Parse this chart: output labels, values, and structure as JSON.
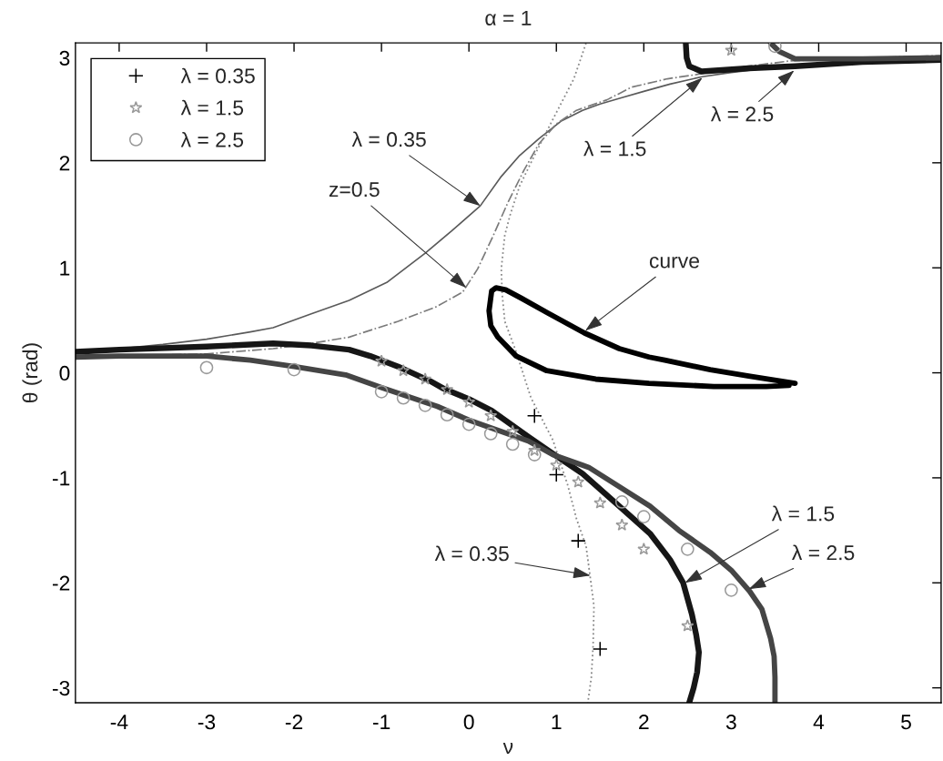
{
  "chart_data": {
    "type": "line",
    "title": "α = 1",
    "xlabel": "ν",
    "ylabel": "θ (rad)",
    "xlim": [
      -4.5,
      5.4
    ],
    "ylim": [
      -3.1416,
      3.1416
    ],
    "xticks": [
      -4,
      -3,
      -2,
      -1,
      0,
      1,
      2,
      3,
      4,
      5
    ],
    "yticks": [
      -3,
      -2,
      -1,
      0,
      1,
      2,
      3
    ],
    "legend": "top left",
    "series": [
      {
        "color": "#5a5a5a",
        "line_style": "solid",
        "x": [
          -4.5,
          -4,
          -3.5,
          -3,
          -2.5,
          -2.24,
          -1.81,
          -1.37,
          -0.94,
          -0.5,
          -0.2,
          0.13,
          0.37,
          0.58,
          0.8,
          1.06,
          1.3,
          1.5,
          1.75,
          2,
          2.3,
          2.67,
          3,
          3.5,
          4,
          4.5,
          5,
          5.4
        ],
        "values": [
          0.2,
          0.23,
          0.27,
          0.32,
          0.39,
          0.43,
          0.56,
          0.69,
          0.86,
          1.14,
          1.35,
          1.59,
          1.87,
          2.07,
          2.23,
          2.4,
          2.5,
          2.56,
          2.62,
          2.68,
          2.75,
          2.82,
          2.86,
          2.91,
          2.94,
          2.96,
          2.97,
          2.98
        ]
      },
      {
        "color": "#7a7a7a",
        "line_style": "dashdot",
        "x": [
          -4.5,
          -4,
          -3,
          -2.24,
          -1.8,
          -1.37,
          -0.81,
          -0.37,
          -0.07,
          0.1,
          0.28,
          0.45,
          0.63,
          0.8,
          1.0,
          1.23,
          1.58,
          1.86,
          2.27,
          2.6,
          3,
          3.67,
          4.5,
          5.4
        ],
        "values": [
          0.15,
          0.16,
          0.18,
          0.23,
          0.28,
          0.34,
          0.49,
          0.63,
          0.77,
          0.99,
          1.31,
          1.63,
          1.93,
          2.18,
          2.37,
          2.5,
          2.6,
          2.72,
          2.8,
          2.84,
          2.9,
          2.97,
          3.0,
          3.02
        ]
      },
      {
        "color": "#8a8a8a",
        "line_style": "dotted",
        "x": [
          1.34,
          1.2,
          0.97,
          0.75,
          0.58,
          0.47,
          0.41,
          0.37,
          0.38,
          0.41,
          0.54,
          0.71,
          0.96,
          1.13,
          1.23,
          1.34,
          1.43,
          1.42,
          1.4,
          1.36
        ],
        "values": [
          3.14,
          2.8,
          2.43,
          2.07,
          1.78,
          1.5,
          1.31,
          0.99,
          0.75,
          0.49,
          0.2,
          -0.24,
          -0.64,
          -1.07,
          -1.39,
          -1.65,
          -2.22,
          -2.6,
          -2.9,
          -3.14
        ]
      },
      {
        "color": "#000000",
        "line_style": "solid",
        "x": [
          3.73,
          3.2,
          2.76,
          2.24,
          2.06,
          1.72,
          1.32,
          0.9,
          0.6,
          0.42,
          0.31,
          0.26,
          0.23,
          0.25,
          0.33,
          0.54,
          0.89,
          1.45,
          2.06,
          2.8,
          3.4,
          3.66
        ],
        "values": [
          -0.1,
          -0.03,
          0.03,
          0.12,
          0.15,
          0.23,
          0.38,
          0.57,
          0.71,
          0.79,
          0.81,
          0.78,
          0.59,
          0.45,
          0.34,
          0.16,
          0.02,
          -0.06,
          -0.1,
          -0.13,
          -0.13,
          -0.12
        ]
      },
      {
        "color": "#161616",
        "line_style": "solid",
        "x": [
          -4.5,
          -4,
          -3,
          -2.24,
          -1.8,
          -1.37,
          -1.13,
          -0.81,
          -0.44,
          -0.29,
          0,
          0.26,
          0.68,
          0.96,
          1.3,
          1.72,
          2.07,
          2.3,
          2.45,
          2.55,
          2.6,
          2.63,
          2.61,
          2.57,
          2.52,
          2.5,
          2.48,
          2.49,
          2.52,
          2.66,
          3.2,
          3.73,
          4.5,
          5.4
        ],
        "values": [
          0.2,
          0.22,
          0.25,
          0.28,
          0.26,
          0.22,
          0.16,
          0.06,
          -0.08,
          -0.15,
          -0.25,
          -0.36,
          -0.61,
          -0.77,
          -0.96,
          -1.27,
          -1.53,
          -1.78,
          -2.0,
          -2.3,
          -2.5,
          -2.66,
          -2.85,
          -3.0,
          -3.14,
          null,
          3.14,
          3.0,
          2.92,
          2.87,
          2.9,
          2.92,
          2.96,
          2.98
        ]
      },
      {
        "color": "#454545",
        "line_style": "solid",
        "x": [
          -4.5,
          -4,
          -3,
          -2.5,
          -2,
          -1.41,
          -1,
          -0.36,
          0,
          0.68,
          0.96,
          1.37,
          2.07,
          2.4,
          2.76,
          3.0,
          3.21,
          3.35,
          3.45,
          3.49,
          3.5,
          3.5,
          3.47,
          3.45,
          3.55,
          3.73,
          4.5,
          5.4
        ],
        "values": [
          0.15,
          0.16,
          0.16,
          0.12,
          0.06,
          -0.02,
          -0.14,
          -0.32,
          -0.45,
          -0.65,
          -0.78,
          -0.9,
          -1.27,
          -1.5,
          -1.71,
          -1.88,
          -2.08,
          -2.25,
          -2.53,
          -2.7,
          -2.9,
          -3.14,
          null,
          3.14,
          3.06,
          2.99,
          2.99,
          3.0
        ]
      },
      {
        "type": "scatter",
        "name": "λ = 0.35",
        "color": "#000000",
        "marker": "cross",
        "x": [
          0.75,
          1,
          1.25,
          1.5
        ],
        "values": [
          -0.41,
          -0.97,
          -1.6,
          -2.63
        ]
      },
      {
        "type": "scatter",
        "name": "λ = 1.5",
        "color": "#999999",
        "marker": "star",
        "x": [
          -1,
          -0.75,
          -0.5,
          -0.25,
          0,
          0.25,
          0.5,
          0.75,
          1,
          1.25,
          1.5,
          1.75,
          2,
          2.5,
          3
        ],
        "values": [
          0.11,
          0.02,
          -0.06,
          -0.16,
          -0.28,
          -0.41,
          -0.56,
          -0.74,
          -0.88,
          -1.04,
          -1.24,
          -1.45,
          -1.68,
          -2.41,
          3.07
        ]
      },
      {
        "type": "scatter",
        "name": "λ = 2.5",
        "color": "#999999",
        "marker": "circle",
        "x": [
          -3,
          -2,
          -1,
          -0.75,
          -0.5,
          -0.25,
          0,
          0.25,
          0.5,
          0.75,
          1.75,
          2,
          2.5,
          3,
          3.5
        ],
        "values": [
          0.05,
          0.03,
          -0.18,
          -0.24,
          -0.31,
          -0.4,
          -0.49,
          -0.58,
          -0.68,
          -0.78,
          -1.23,
          -1.37,
          -1.68,
          -2.07,
          3.11
        ]
      }
    ],
    "annotations": [
      {
        "text": "λ = 0.35",
        "x": 0.13,
        "y": 1.59
      },
      {
        "text": "z=0.5",
        "x": -0.03,
        "y": 0.81
      },
      {
        "text": "λ = 1.5",
        "x": 2.67,
        "y": 2.81
      },
      {
        "text": "λ = 2.5",
        "x": 3.72,
        "y": 2.88
      },
      {
        "text": "curve",
        "x": 1.33,
        "y": 0.4
      },
      {
        "text": "λ = 0.35",
        "x": 1.39,
        "y": -1.93
      },
      {
        "text": "λ = 1.5",
        "x": 2.47,
        "y": -2.0
      },
      {
        "text": "λ = 2.5",
        "x": 3.2,
        "y": -2.06
      }
    ]
  }
}
